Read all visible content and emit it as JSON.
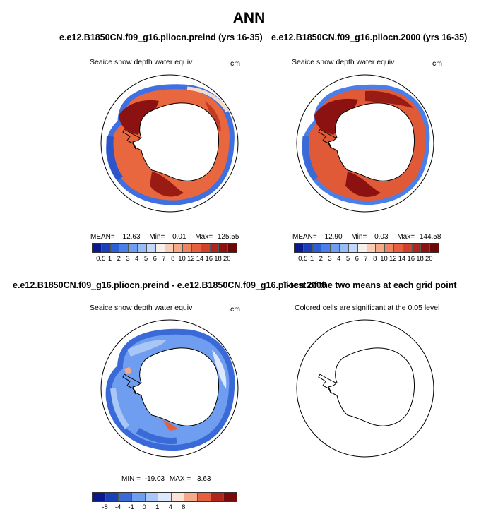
{
  "title": "ANN",
  "panels": {
    "top_left": {
      "run_title": "e.e12.B1850CN.f09_g16.pliocn.preind (yrs 16-35)",
      "variable": "Seaice snow depth water equiv",
      "units": "cm",
      "mean_label": "MEAN=",
      "mean": "12.63",
      "min_label": "Min=",
      "min": "0.01",
      "max_label": "Max=",
      "max": "125.55"
    },
    "top_right": {
      "run_title": "e.e12.B1850CN.f09_g16.pliocn.2000 (yrs 16-35)",
      "variable": "Seaice snow depth water equiv",
      "units": "cm",
      "mean_label": "MEAN=",
      "mean": "12.90",
      "min_label": "Min=",
      "min": "0.03",
      "max_label": "Max=",
      "max": "144.58"
    },
    "bottom_left": {
      "run_title": "e.e12.B1850CN.f09_g16.pliocn.preind - e.e12.B1850CN.f09_g16.pliocn.2000",
      "variable": "Seaice snow depth water equiv",
      "units": "cm",
      "min_label": "MIN =",
      "min": "-19.03",
      "max_label": "MAX =",
      "max": "3.63"
    },
    "bottom_right": {
      "run_title": "T-test of the two means at each grid point",
      "subtitle": "Colored cells are significant at the 0.05 level"
    }
  },
  "colorbars": {
    "absolute": {
      "labels": [
        "0.5",
        "1",
        "2",
        "3",
        "4",
        "5",
        "6",
        "7",
        "8",
        "10",
        "12",
        "14",
        "16",
        "18",
        "20"
      ],
      "colors": [
        "#0a1a8c",
        "#1a3fb8",
        "#2b5fd6",
        "#4a7ee8",
        "#6f9df0",
        "#98bcf6",
        "#c2d8fa",
        "#f6f0ec",
        "#f8cdb6",
        "#f4a988",
        "#ee8460",
        "#e4603e",
        "#d0402a",
        "#b0241c",
        "#8c1212",
        "#6a0808"
      ]
    },
    "difference": {
      "labels": [
        "-8",
        "-4",
        "-1",
        "0",
        "1",
        "4",
        "8"
      ],
      "colors": [
        "#0a1a8c",
        "#1a3fb8",
        "#3a6ad8",
        "#6f9df0",
        "#a8c6f6",
        "#dce8fb",
        "#fbe2d6",
        "#f4a988",
        "#e4603e",
        "#b0241c",
        "#7a0a0a"
      ]
    }
  }
}
